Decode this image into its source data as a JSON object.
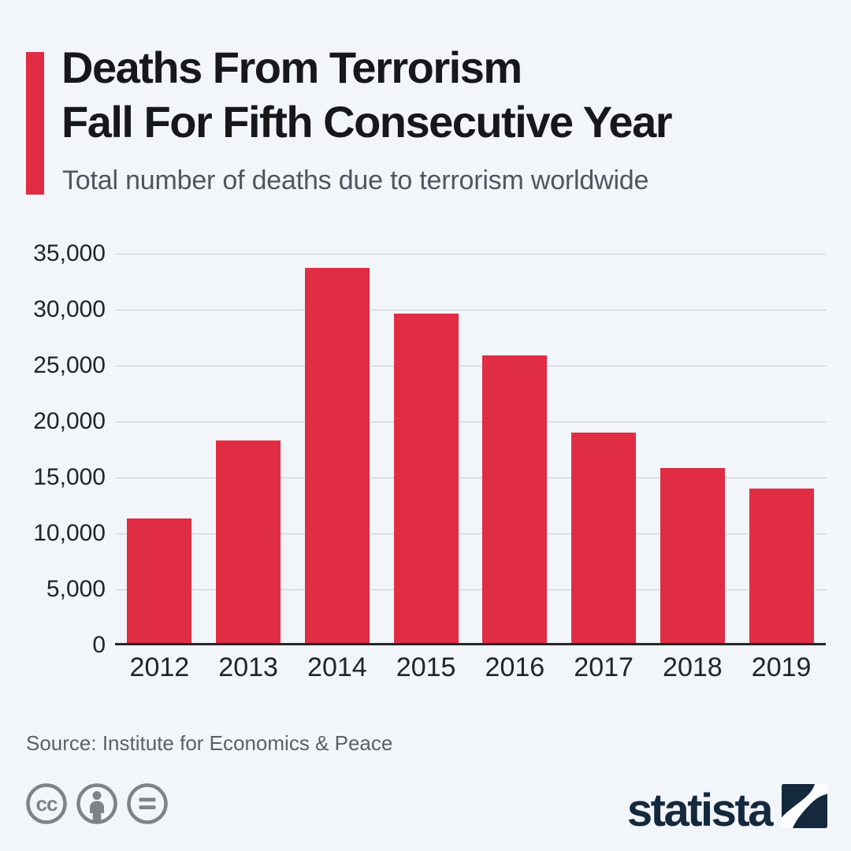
{
  "header": {
    "title_line1": "Deaths From Terrorism",
    "title_line2": "Fall For Fifth Consecutive Year",
    "subtitle": "Total number of deaths due to terrorism worldwide"
  },
  "chart_data": {
    "type": "bar",
    "title": "Deaths From Terrorism Fall For Fifth Consecutive Year",
    "subtitle": "Total number of deaths due to terrorism worldwide",
    "categories": [
      "2012",
      "2013",
      "2014",
      "2015",
      "2016",
      "2017",
      "2018",
      "2019"
    ],
    "values": [
      11098,
      18111,
      33555,
      29424,
      25673,
      18814,
      15630,
      13826
    ],
    "xlabel": "",
    "ylabel": "",
    "ylim": [
      0,
      35000
    ],
    "ytick_step": 5000,
    "ytick_labels": [
      "0",
      "5,000",
      "10,000",
      "15,000",
      "20,000",
      "25,000",
      "30,000",
      "35,000"
    ],
    "grid": true,
    "legend": false,
    "bar_color": "#e02d44"
  },
  "footer": {
    "source": "Source: Institute for Economics & Peace",
    "license_icons": [
      "cc",
      "attribution",
      "no-derivatives"
    ],
    "brand": "statista"
  },
  "colors": {
    "background": "#f2f5f9",
    "bar": "#e02d44",
    "accent": "#e02d44",
    "title": "#17181b",
    "subtitle": "#4f565e",
    "grid": "#c9cfd7",
    "axis": "#24272c",
    "tick": "#212429",
    "source": "#5c6167",
    "brand_navy": "#15293e",
    "icon_gray": "#7e8388"
  }
}
